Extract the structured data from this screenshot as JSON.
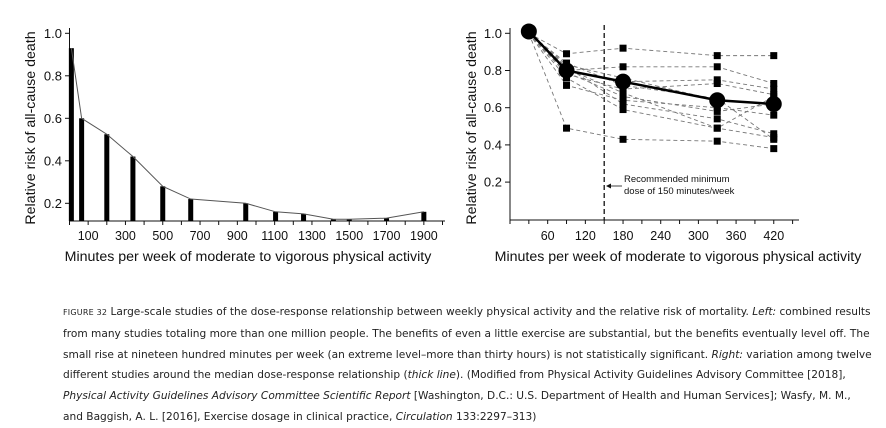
{
  "chart_data": [
    {
      "type": "bar",
      "xlabel": "Minutes per week of moderate to vigorous physical activity",
      "ylabel": "Relative risk of all-cause death",
      "xticks": [
        100,
        300,
        500,
        700,
        900,
        1100,
        1300,
        1500,
        1700,
        1900
      ],
      "yticks": [
        "0.2",
        "0.4",
        "0.6",
        "0.8",
        "1.0"
      ],
      "xlim": [
        0,
        2000
      ],
      "ylim": [
        0.12,
        1.0
      ],
      "x": [
        10,
        65,
        200,
        340,
        500,
        650,
        945,
        1105,
        1255,
        1415,
        1500,
        1700,
        1900
      ],
      "values": [
        0.93,
        0.6,
        0.525,
        0.42,
        0.28,
        0.22,
        0.2,
        0.16,
        0.15,
        0.125,
        0.125,
        0.13,
        0.16
      ],
      "connecting_line": true,
      "grid": false
    },
    {
      "type": "line",
      "xlabel": "Minutes per week of moderate to vigorous physical activity",
      "ylabel": "Relative risk of all-cause death",
      "xticks": [
        60,
        120,
        180,
        240,
        300,
        360,
        420
      ],
      "yticks": [
        "0.2",
        "0.4",
        "0.6",
        "0.8",
        "1.0"
      ],
      "xlim": [
        0,
        460
      ],
      "ylim": [
        0,
        1.0
      ],
      "x": [
        30,
        90,
        180,
        330,
        420
      ],
      "median": [
        1.01,
        0.8,
        0.74,
        0.64,
        0.62
      ],
      "studies": [
        [
          1.0,
          0.89,
          0.92,
          0.88,
          0.88
        ],
        [
          1.0,
          0.8,
          0.82,
          0.82,
          0.73
        ],
        [
          1.0,
          0.72,
          0.64,
          0.6,
          0.56
        ],
        [
          1.0,
          0.49,
          0.43,
          0.42,
          0.38
        ],
        [
          1.0,
          0.8,
          0.74,
          0.75,
          0.7
        ],
        [
          1.0,
          0.78,
          0.7,
          0.73,
          0.67
        ],
        [
          1.0,
          0.82,
          0.62,
          0.54,
          0.46
        ],
        [
          1.0,
          0.76,
          0.59,
          0.49,
          0.44
        ],
        [
          1.0,
          0.84,
          0.72,
          0.65,
          0.43
        ],
        [
          1.0,
          0.79,
          0.66,
          0.58,
          0.62
        ],
        [
          1.0,
          0.81,
          0.68,
          0.49,
          0.66
        ],
        [
          1.0,
          0.83,
          0.76,
          0.64,
          0.62
        ]
      ],
      "reference_line_x": 150,
      "annotation": [
        "Recommended minimum",
        "dose of 150 minutes/week"
      ],
      "grid": false
    }
  ],
  "caption": {
    "lines": [
      [
        {
          "t": "FIGURE 32",
          "s": "label"
        },
        {
          "t": " Large-scale studies of the dose-response relationship between weekly physical activity and the relative risk of mortality. "
        },
        {
          "t": "Left:",
          "i": true
        },
        {
          "t": " combined results"
        }
      ],
      [
        {
          "t": "from many studies totaling more than one million people. The benefits of even a little exercise are substantial, but the benefits eventually level off. The"
        }
      ],
      [
        {
          "t": "small rise at nineteen hundred minutes per week (an extreme level–more than thirty hours) is not statistically significant. "
        },
        {
          "t": "Right:",
          "i": true
        },
        {
          "t": " variation among twelve"
        }
      ],
      [
        {
          "t": "different studies around the median dose-response relationship ("
        },
        {
          "t": "thick line",
          "i": true
        },
        {
          "t": "). (Modified from Physical Activity Guidelines Advisory Committee [2018],"
        }
      ],
      [
        {
          "t": "Physical Activity Guidelines Advisory Committee Scientific Report",
          "i": true
        },
        {
          "t": " [Washington, D.C.: U.S. Department of Health and Human Services]; Wasfy, M. M.,"
        }
      ],
      [
        {
          "t": "and Baggish, A. L. [2016], Exercise dosage in clinical practice, "
        },
        {
          "t": "Circulation",
          "i": true
        },
        {
          "t": " 133:2297–313)"
        }
      ]
    ]
  }
}
